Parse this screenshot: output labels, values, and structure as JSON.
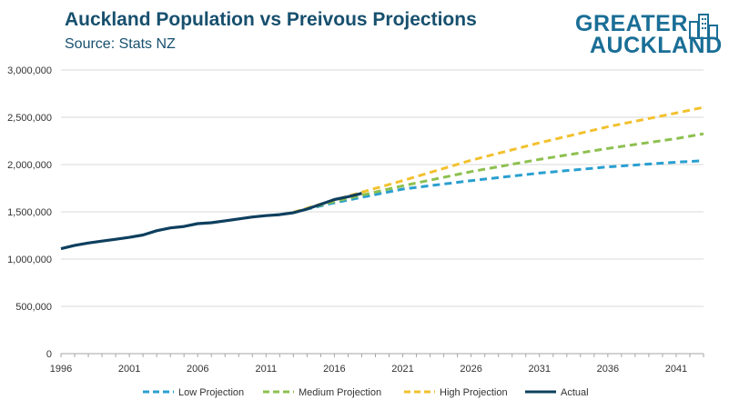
{
  "title": "Auckland Population vs Preivous Projections",
  "subtitle": "Source: Stats NZ",
  "logo": {
    "line1": "GREATER",
    "line2": "AUCKLAND"
  },
  "chart_data": {
    "type": "line",
    "title": "Auckland Population vs Preivous Projections",
    "subtitle": "Source: Stats NZ",
    "xlim": [
      1996,
      2043
    ],
    "ylim": [
      0,
      3000000
    ],
    "x_ticks": [
      1996,
      2001,
      2006,
      2011,
      2016,
      2021,
      2026,
      2031,
      2036,
      2041
    ],
    "y_ticks": [
      0,
      500000,
      1000000,
      1500000,
      2000000,
      2500000,
      3000000
    ],
    "y_tick_labels": [
      "0",
      "500,000",
      "1,000,000",
      "1,500,000",
      "2,000,000",
      "2,500,000",
      "3,000,000"
    ],
    "grid": "horizontal",
    "legend": "bottom",
    "series": [
      {
        "name": "Low Projection",
        "color": "#2a9fd0",
        "style": "dashed",
        "x": [
          2013,
          2016,
          2021,
          2026,
          2031,
          2036,
          2041,
          2043
        ],
        "y": [
          1495000,
          1595000,
          1740000,
          1830000,
          1910000,
          1975000,
          2025000,
          2040000
        ]
      },
      {
        "name": "Medium Projection",
        "color": "#8dc04f",
        "style": "dashed",
        "x": [
          2013,
          2016,
          2021,
          2026,
          2031,
          2036,
          2041,
          2043
        ],
        "y": [
          1495000,
          1610000,
          1775000,
          1925000,
          2055000,
          2170000,
          2275000,
          2325000
        ]
      },
      {
        "name": "High Projection",
        "color": "#f2c12e",
        "style": "dashed",
        "x": [
          2013,
          2016,
          2021,
          2026,
          2031,
          2036,
          2041,
          2043
        ],
        "y": [
          1495000,
          1625000,
          1830000,
          2045000,
          2230000,
          2400000,
          2545000,
          2605000
        ]
      },
      {
        "name": "Actual",
        "color": "#0e3f5e",
        "style": "solid",
        "x": [
          1996,
          1997,
          1998,
          1999,
          2000,
          2001,
          2002,
          2003,
          2004,
          2005,
          2006,
          2007,
          2008,
          2009,
          2010,
          2011,
          2012,
          2013,
          2014,
          2015,
          2016,
          2017,
          2018
        ],
        "y": [
          1110000,
          1145000,
          1170000,
          1190000,
          1210000,
          1230000,
          1255000,
          1300000,
          1330000,
          1345000,
          1375000,
          1385000,
          1405000,
          1425000,
          1445000,
          1460000,
          1470000,
          1490000,
          1530000,
          1580000,
          1630000,
          1660000,
          1695000
        ]
      }
    ]
  }
}
